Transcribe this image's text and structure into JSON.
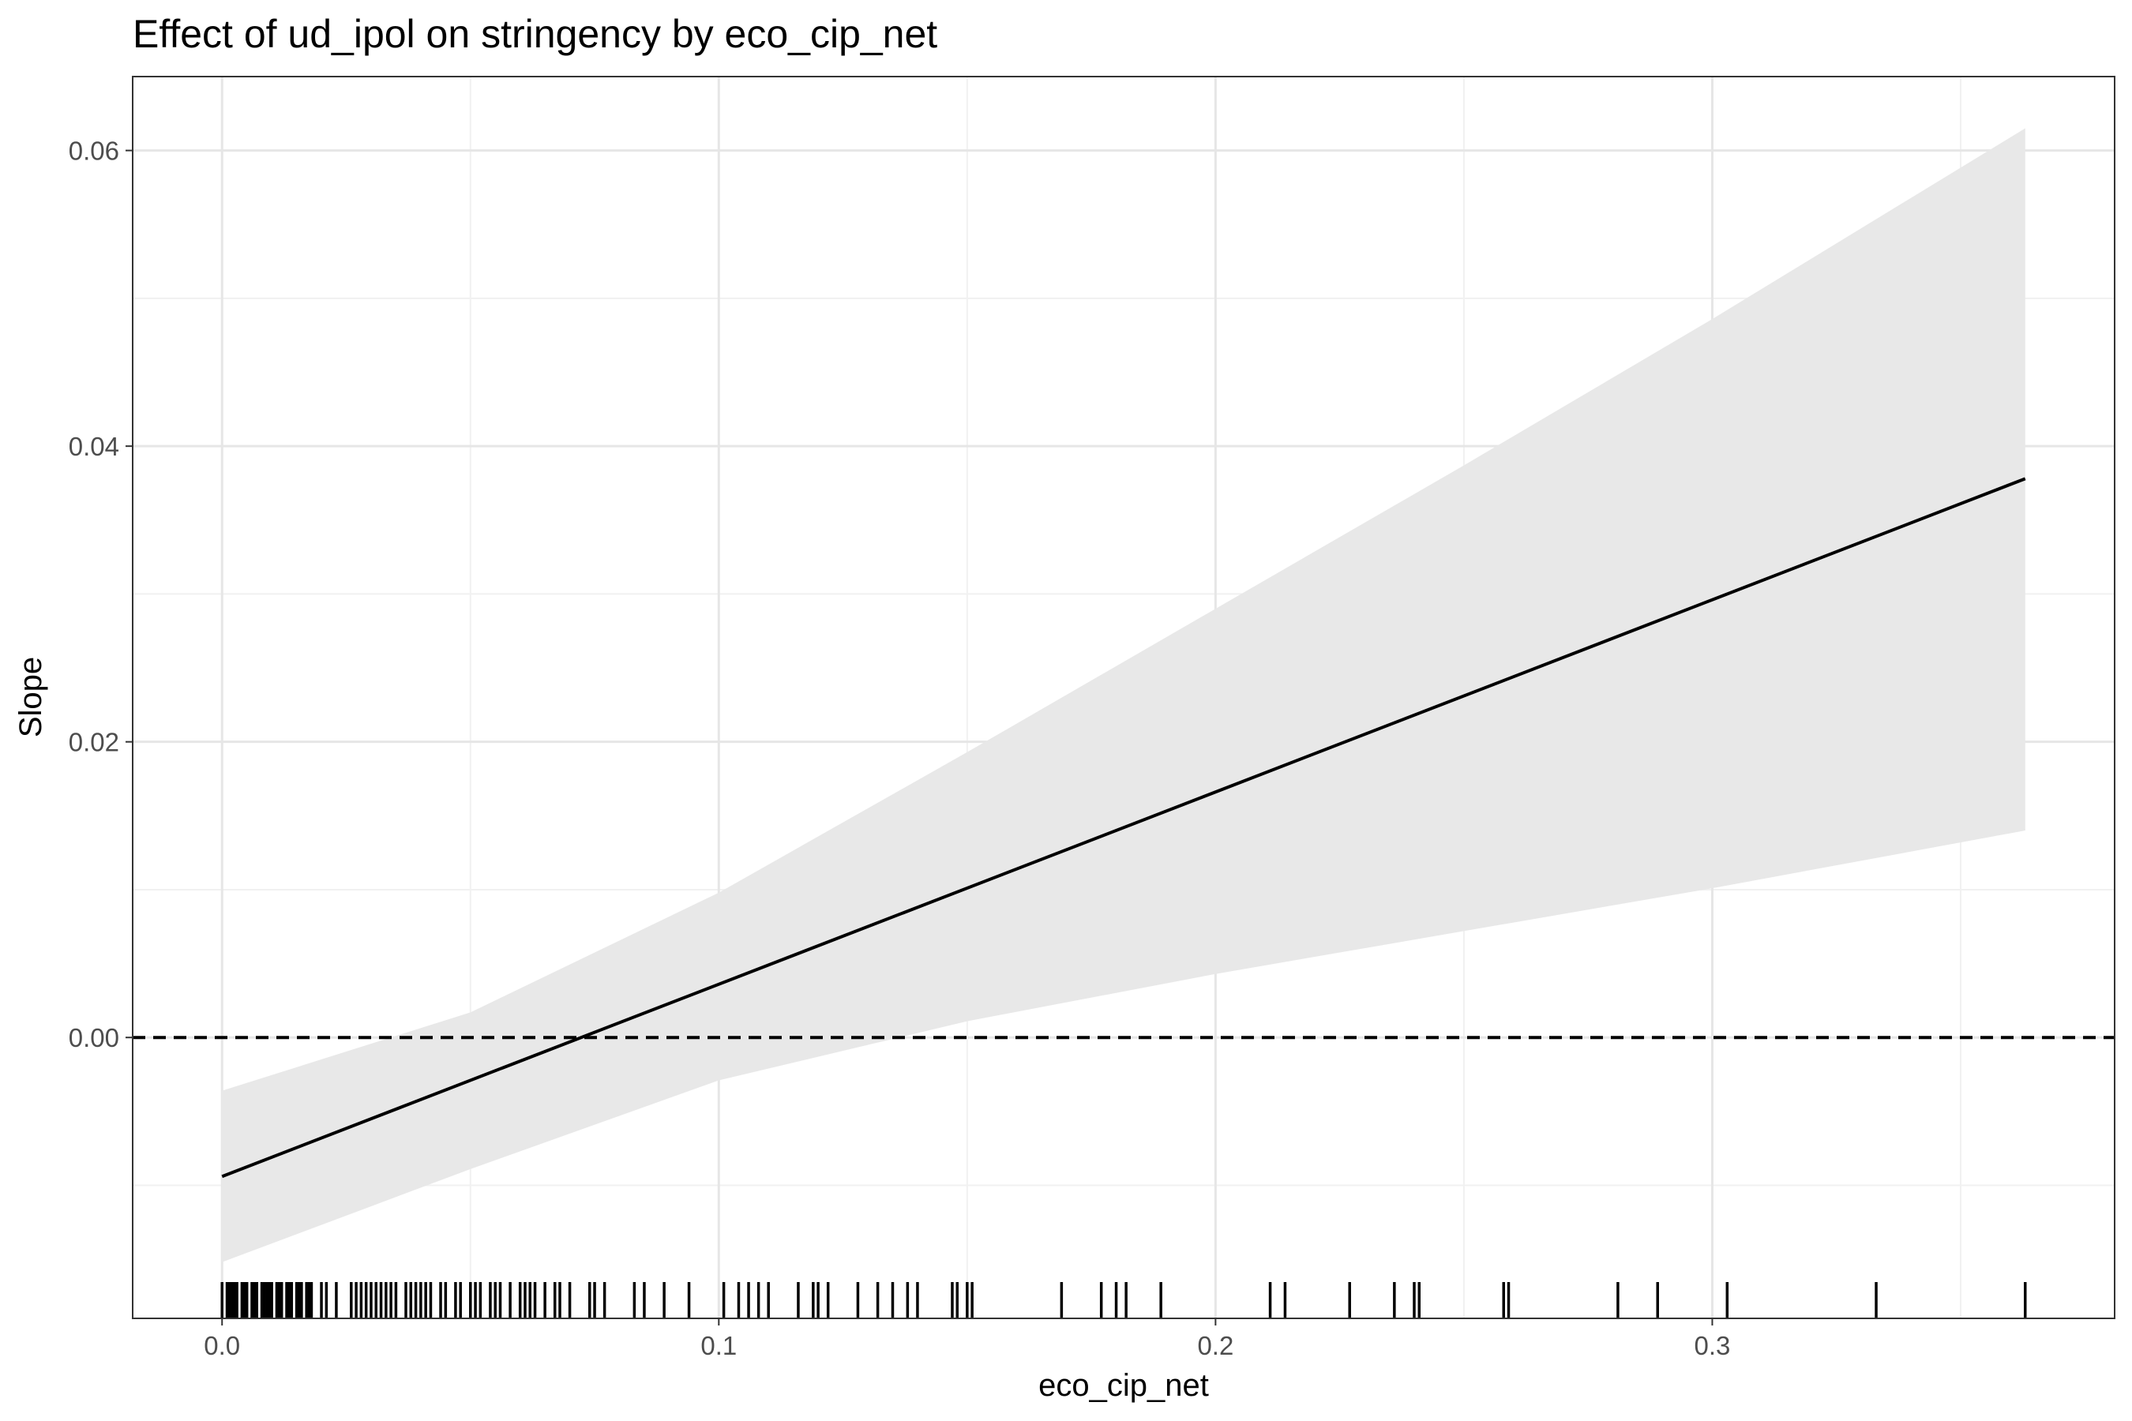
{
  "chart_data": {
    "type": "line",
    "title": "Effect of ud_ipol on stringency by eco_cip_net",
    "xlabel": "eco_cip_net",
    "ylabel": "Slope",
    "xlim": [
      -0.018,
      0.381
    ],
    "ylim": [
      -0.019,
      0.065
    ],
    "x_ticks": [
      0.0,
      0.1,
      0.2,
      0.3
    ],
    "x_tick_labels": [
      "0.0",
      "0.1",
      "0.2",
      "0.3"
    ],
    "y_ticks": [
      0.0,
      0.02,
      0.04,
      0.06
    ],
    "y_tick_labels": [
      "0.00",
      "0.02",
      "0.04",
      "0.06"
    ],
    "grid": true,
    "reference_line": {
      "y": 0,
      "style": "dashed"
    },
    "series": [
      {
        "type": "line",
        "x": [
          0.0,
          0.363
        ],
        "y": [
          -0.0094,
          0.0378
        ]
      },
      {
        "type": "ribbon",
        "x": [
          0.0,
          0.05,
          0.1,
          0.15,
          0.2,
          0.25,
          0.3,
          0.363
        ],
        "lower": [
          -0.0152,
          -0.0089,
          -0.0029,
          0.0011,
          0.0043,
          0.0072,
          0.0101,
          0.014
        ],
        "upper": [
          -0.0036,
          0.0017,
          0.0098,
          0.0193,
          0.029,
          0.0387,
          0.0486,
          0.0615
        ]
      }
    ],
    "rug_x": [
      0.0,
      0.001,
      0.0015,
      0.002,
      0.0025,
      0.003,
      0.004,
      0.0045,
      0.005,
      0.006,
      0.0065,
      0.007,
      0.008,
      0.0085,
      0.009,
      0.0095,
      0.01,
      0.011,
      0.0115,
      0.012,
      0.013,
      0.0135,
      0.014,
      0.015,
      0.0155,
      0.016,
      0.017,
      0.0175,
      0.018,
      0.02,
      0.021,
      0.023,
      0.026,
      0.027,
      0.028,
      0.029,
      0.03,
      0.031,
      0.032,
      0.033,
      0.034,
      0.035,
      0.037,
      0.038,
      0.039,
      0.04,
      0.041,
      0.042,
      0.044,
      0.045,
      0.047,
      0.048,
      0.05,
      0.051,
      0.052,
      0.054,
      0.055,
      0.056,
      0.058,
      0.06,
      0.061,
      0.062,
      0.063,
      0.065,
      0.067,
      0.068,
      0.07,
      0.074,
      0.075,
      0.077,
      0.083,
      0.085,
      0.089,
      0.094,
      0.101,
      0.104,
      0.106,
      0.108,
      0.11,
      0.116,
      0.119,
      0.12,
      0.122,
      0.128,
      0.132,
      0.135,
      0.138,
      0.14,
      0.147,
      0.148,
      0.15,
      0.151,
      0.169,
      0.177,
      0.18,
      0.182,
      0.189,
      0.211,
      0.214,
      0.227,
      0.236,
      0.24,
      0.241,
      0.258,
      0.259,
      0.281,
      0.289,
      0.303,
      0.333,
      0.363
    ]
  }
}
